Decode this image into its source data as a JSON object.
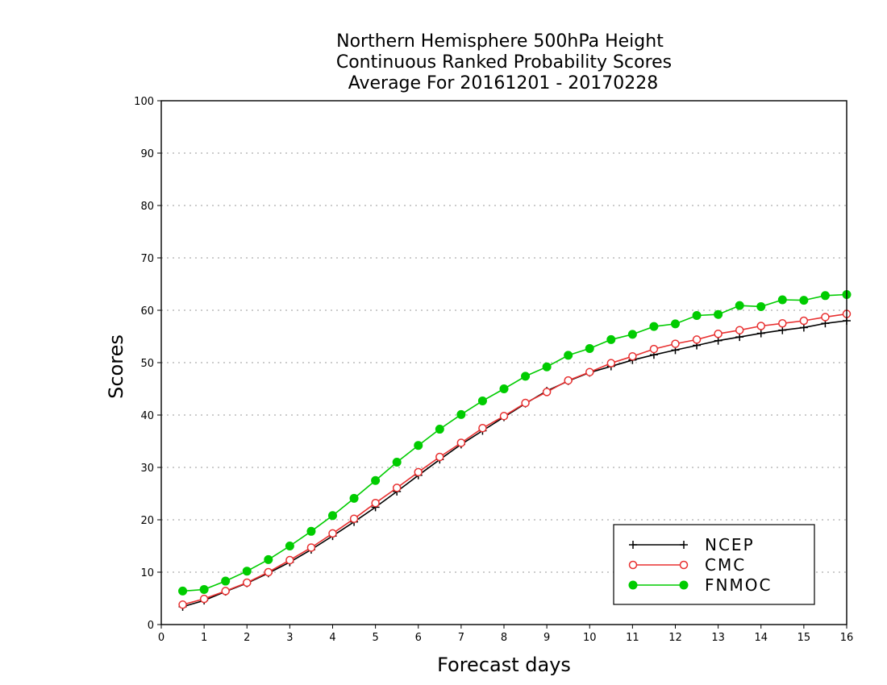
{
  "chart_data": {
    "type": "line",
    "title": [
      "Northern Hemisphere 500hPa Height",
      "Continuous Ranked Probability Scores",
      "Average For 20161201 - 20170228"
    ],
    "xlabel": "Forecast days",
    "ylabel": "Scores",
    "xlim": [
      0,
      16
    ],
    "ylim": [
      0,
      100
    ],
    "xticks": [
      0,
      1,
      2,
      3,
      4,
      5,
      6,
      7,
      8,
      9,
      10,
      11,
      12,
      13,
      14,
      15,
      16
    ],
    "yticks": [
      0,
      10,
      20,
      30,
      40,
      50,
      60,
      70,
      80,
      90,
      100
    ],
    "grid": true,
    "legend_position": "bottom-right",
    "x": [
      0.5,
      1,
      1.5,
      2,
      2.5,
      3,
      3.5,
      4,
      4.5,
      5,
      5.5,
      6,
      6.5,
      7,
      7.5,
      8,
      8.5,
      9,
      9.5,
      10,
      10.5,
      11,
      11.5,
      12,
      12.5,
      13,
      13.5,
      14,
      14.5,
      15,
      15.5,
      16
    ],
    "series": [
      {
        "name": "NCEP",
        "color": "#000000",
        "marker": "plus",
        "values": [
          3.4,
          4.6,
          6.3,
          7.9,
          9.8,
          11.9,
          14.3,
          16.9,
          19.6,
          22.4,
          25.4,
          28.5,
          31.5,
          34.4,
          37.0,
          39.6,
          42.2,
          44.6,
          46.5,
          48.1,
          49.3,
          50.5,
          51.5,
          52.4,
          53.3,
          54.2,
          54.9,
          55.6,
          56.2,
          56.7,
          57.5,
          58.0
        ]
      },
      {
        "name": "CMC",
        "color": "#e83030",
        "marker": "open-circle",
        "values": [
          3.8,
          4.9,
          6.4,
          8.0,
          10.0,
          12.3,
          14.7,
          17.4,
          20.2,
          23.2,
          26.1,
          29.1,
          32.0,
          34.7,
          37.5,
          39.8,
          42.3,
          44.4,
          46.6,
          48.2,
          49.9,
          51.2,
          52.6,
          53.6,
          54.4,
          55.5,
          56.2,
          57.0,
          57.5,
          58.0,
          58.7,
          59.3
        ]
      },
      {
        "name": "FNMOC",
        "color": "#00cc00",
        "marker": "filled-circle",
        "values": [
          6.4,
          6.7,
          8.3,
          10.2,
          12.4,
          15.0,
          17.8,
          20.8,
          24.1,
          27.5,
          31.0,
          34.2,
          37.3,
          40.1,
          42.7,
          45.0,
          47.4,
          49.2,
          51.4,
          52.7,
          54.4,
          55.4,
          56.9,
          57.4,
          59.0,
          59.2,
          60.9,
          60.7,
          62.0,
          61.9,
          62.8,
          63.0
        ]
      }
    ]
  }
}
